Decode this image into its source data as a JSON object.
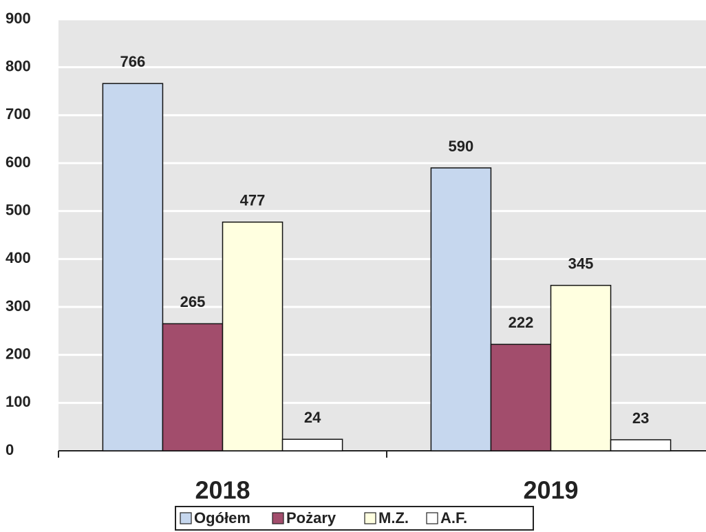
{
  "chart_data": {
    "type": "bar",
    "categories": [
      "2018",
      "2019"
    ],
    "series": [
      {
        "name": "Ogółem",
        "color": "#c6d7ee",
        "values": [
          766,
          590
        ]
      },
      {
        "name": "Pożary",
        "color": "#a24d6c",
        "values": [
          265,
          222
        ]
      },
      {
        "name": "M.Z.",
        "color": "#ffffe0",
        "values": [
          477,
          345
        ]
      },
      {
        "name": "A.F.",
        "color": "#ffffff",
        "values": [
          24,
          23
        ]
      }
    ],
    "ylim": [
      0,
      900
    ],
    "yticks": [
      0,
      100,
      200,
      300,
      400,
      500,
      600,
      700,
      800,
      900
    ],
    "grid": true,
    "legend": "bottom"
  }
}
